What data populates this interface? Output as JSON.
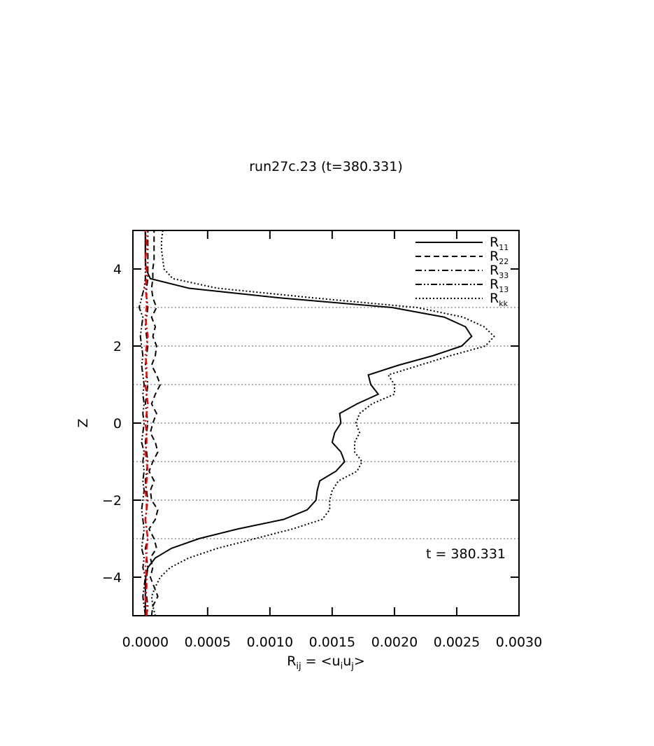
{
  "chart_data": {
    "type": "line",
    "title": "run27c.23 (t=380.331)",
    "xlabel": [
      "R",
      "ij",
      " = <u",
      "i",
      "u",
      "j",
      ">"
    ],
    "ylabel": "Z",
    "annotation": "t = 380.331",
    "z": [
      -5,
      -4.75,
      -4.5,
      -4.25,
      -4,
      -3.75,
      -3.5,
      -3.25,
      -3,
      -2.75,
      -2.5,
      -2.25,
      -2,
      -1.75,
      -1.5,
      -1.25,
      -1,
      -0.75,
      -0.5,
      -0.25,
      0,
      0.25,
      0.5,
      0.75,
      1,
      1.25,
      1.5,
      1.75,
      2,
      2.25,
      2.5,
      2.75,
      3,
      3.25,
      3.5,
      3.75,
      4,
      4.25,
      4.5,
      4.75,
      5
    ],
    "series": [
      {
        "name": "R11",
        "color": "#000000",
        "style": "solid",
        "values": [
          0,
          0,
          0,
          0,
          3e-06,
          2e-05,
          8e-05,
          0.00021,
          0.00043,
          0.00074,
          0.00111,
          0.0013,
          0.00137,
          0.00138,
          0.0014,
          0.00153,
          0.0016,
          0.00157,
          0.0015,
          0.00152,
          0.00157,
          0.00156,
          0.0017,
          0.00187,
          0.00181,
          0.00179,
          0.00203,
          0.00231,
          0.00254,
          0.00262,
          0.00257,
          0.0024,
          0.00198,
          0.00108,
          0.00035,
          4e-05,
          5e-06,
          0,
          0,
          0,
          0
        ]
      },
      {
        "name": "R22",
        "color": "#000000",
        "style": "dashed",
        "values": [
          5e-05,
          6e-05,
          0.0001,
          7e-05,
          4e-05,
          6e-05,
          4e-05,
          9e-05,
          7e-05,
          3e-05,
          8e-05,
          0.0001,
          5e-05,
          4e-05,
          7e-05,
          3e-05,
          6e-05,
          0.0001,
          8e-05,
          4e-05,
          6e-05,
          9e-05,
          5e-05,
          8e-05,
          0.00012,
          9e-05,
          5e-05,
          8e-05,
          9e-05,
          6e-05,
          8e-05,
          5e-05,
          9e-05,
          6e-05,
          5e-05,
          6e-05,
          6e-05,
          7e-05,
          7e-05,
          7e-05,
          7e-05
        ]
      },
      {
        "name": "R33",
        "color": "#000000",
        "style": "dashdot",
        "values": [
          1e-05,
          2e-05,
          1e-05,
          0,
          1e-05,
          2e-05,
          1e-05,
          0,
          2e-05,
          1e-05,
          0,
          1e-05,
          2e-05,
          1e-05,
          0,
          1e-05,
          2e-05,
          1e-05,
          0,
          1e-05,
          2e-05,
          1e-05,
          0,
          1e-05,
          2e-05,
          1e-05,
          0,
          1e-05,
          2e-05,
          1e-05,
          0,
          1e-05,
          2e-05,
          1e-05,
          1e-05,
          2e-05,
          2e-05,
          2e-05,
          2e-05,
          2e-05,
          2e-05
        ]
      },
      {
        "name": "R13",
        "color": "#000000",
        "style": "dashdotdot",
        "values": [
          0,
          -1e-05,
          -2e-05,
          -1e-05,
          0,
          -2e-05,
          -1e-05,
          -3e-05,
          -2e-05,
          -1e-05,
          -2e-05,
          -3e-05,
          -2e-05,
          -1e-05,
          -2e-05,
          -1e-05,
          -2e-05,
          -1e-05,
          -3e-05,
          -2e-05,
          -1e-05,
          -2e-05,
          -1e-05,
          -2e-05,
          -1e-05,
          -2e-05,
          -3e-05,
          -2e-05,
          -3e-05,
          -4e-05,
          -3e-05,
          -2e-05,
          -5e-05,
          -3e-05,
          -1e-05,
          0,
          0,
          0,
          0,
          0,
          0
        ]
      },
      {
        "color": "#ff0000",
        "style": "dashdot",
        "values": [
          1e-05,
          1e-05,
          0,
          1e-05,
          1e-05,
          0,
          1e-05,
          1e-05,
          2e-05,
          1e-05,
          0,
          1e-05,
          1e-05,
          0,
          1e-05,
          2e-05,
          1e-05,
          0,
          1e-05,
          1e-05,
          0,
          1e-05,
          2e-05,
          1e-05,
          0,
          1e-05,
          1e-05,
          0,
          1e-05,
          2e-05,
          1e-05,
          0,
          1e-05,
          1e-05,
          0,
          1e-05,
          1e-05,
          0,
          1e-05,
          1e-05,
          0
        ]
      },
      {
        "name": "Rkk",
        "color": "#000000",
        "style": "dotted",
        "values": [
          8e-05,
          6e-05,
          5e-05,
          8e-05,
          0.00012,
          0.0002,
          0.00035,
          0.00058,
          0.00088,
          0.00118,
          0.00142,
          0.00148,
          0.00148,
          0.0015,
          0.00155,
          0.0017,
          0.00174,
          0.00168,
          0.00168,
          0.00172,
          0.00169,
          0.00172,
          0.00182,
          0.002,
          0.002,
          0.00195,
          0.0022,
          0.00245,
          0.00273,
          0.0028,
          0.00272,
          0.00255,
          0.00218,
          0.00135,
          0.00058,
          0.00022,
          0.00015,
          0.00014,
          0.00013,
          0.00013,
          0.00014
        ]
      }
    ],
    "xlim": [
      -0.0001,
      0.003
    ],
    "xticks": [
      {
        "value": 0,
        "label": "0.0000"
      },
      {
        "value": 0.0005,
        "label": "0.0005"
      },
      {
        "value": 0.001,
        "label": "0.0010"
      },
      {
        "value": 0.0015,
        "label": "0.0015"
      },
      {
        "value": 0.002,
        "label": "0.0020"
      },
      {
        "value": 0.0025,
        "label": "0.0025"
      },
      {
        "value": 0.003,
        "label": "0.0030"
      }
    ],
    "ylim": [
      -5,
      5
    ],
    "yticks": [
      {
        "value": -4,
        "label": "−4"
      },
      {
        "value": -2,
        "label": "−2"
      },
      0,
      2,
      4
    ],
    "hgrid": [
      -3,
      -2,
      -1,
      0,
      1,
      2,
      3
    ],
    "legend": "top-right"
  }
}
